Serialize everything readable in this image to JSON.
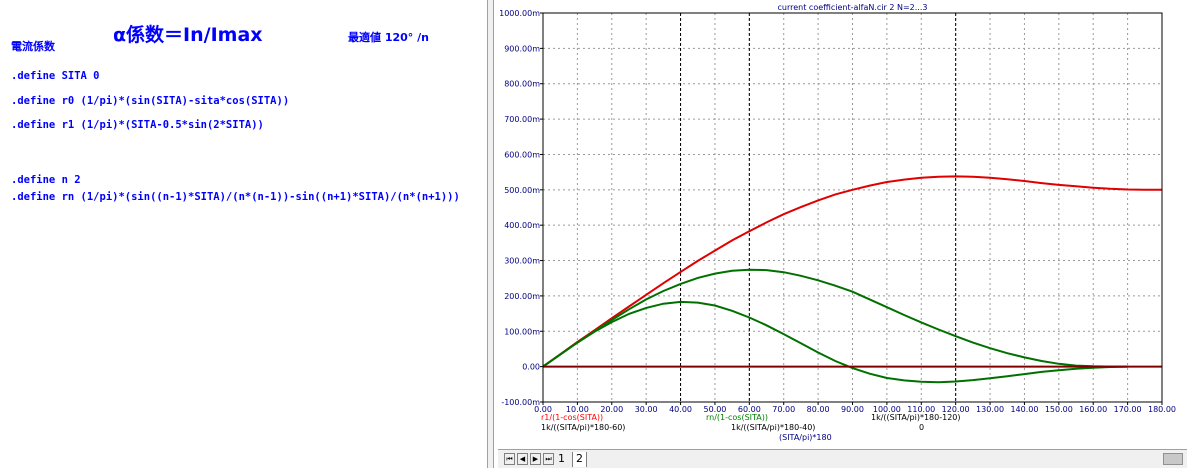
{
  "editor": {
    "header_label": "電流係数",
    "title": "α係数＝In/Imax",
    "optimum_label": "最適値 120° /n",
    "lines": [
      ".define SITA 0",
      ".define r0 (1/pi)*(sin(SITA)-sita*cos(SITA))",
      ".define r1 (1/pi)*(SITA-0.5*sin(2*SITA))",
      ".define n 2",
      ".define rn (1/pi)*(sin((n-1)*SITA)/(n*(n-1))-sin((n+1)*SITA)/(n*(n+1)))"
    ]
  },
  "tabs": {
    "nav_first": "⏮",
    "nav_prev": "◀",
    "nav_next": "▶",
    "nav_last": "⏭",
    "tab1": "1",
    "tab2": "2"
  },
  "chart_data": {
    "type": "line",
    "title": "current coefficient-alfaN.cir 2 N=2...3",
    "xlim": [
      0,
      180
    ],
    "ylim": [
      -100,
      1000
    ],
    "x_ticks": [
      "0.00",
      "10.00",
      "20.00",
      "30.00",
      "40.00",
      "50.00",
      "60.00",
      "70.00",
      "80.00",
      "90.00",
      "100.00",
      "110.00",
      "120.00",
      "130.00",
      "140.00",
      "150.00",
      "160.00",
      "170.00",
      "180.00"
    ],
    "y_ticks": [
      "-100.00m",
      "0.00",
      "100.00m",
      "200.00m",
      "300.00m",
      "400.00m",
      "500.00m",
      "600.00m",
      "700.00m",
      "800.00m",
      "900.00m",
      "1000.00m"
    ],
    "grid": true,
    "markers_x": [
      40,
      60,
      120
    ],
    "legend": [
      {
        "text": "r1/(1-cos(SITA))",
        "color": "#ff0000"
      },
      {
        "text": "rn/(1-cos(SITA))",
        "color": "#008000"
      }
    ],
    "x_expressions": [
      "1k/((SITA/pi)*180-60)",
      "1k/((SITA/pi)*180-40)",
      "1k/((SITA/pi)*180-120)",
      "(SITA/pi)*180",
      "0"
    ],
    "series": [
      {
        "name": "r1/(1-cos(SITA))",
        "color": "#e00000",
        "x": [
          0,
          5,
          10,
          15,
          20,
          25,
          30,
          35,
          40,
          45,
          50,
          55,
          60,
          65,
          70,
          75,
          80,
          85,
          90,
          95,
          100,
          105,
          110,
          115,
          120,
          125,
          130,
          135,
          140,
          145,
          150,
          155,
          160,
          165,
          170,
          175,
          180
        ],
        "y": [
          0,
          35,
          70,
          103,
          137,
          170,
          203,
          236,
          268,
          299,
          328,
          357,
          383,
          408,
          431,
          451,
          470,
          487,
          500,
          512,
          522,
          529,
          534,
          537,
          538,
          537,
          534,
          530,
          525,
          519,
          514,
          510,
          506,
          503,
          501,
          500,
          500
        ]
      },
      {
        "name": "rn/(1-cos(SITA)) n=2",
        "color": "#007000",
        "x": [
          0,
          5,
          10,
          15,
          20,
          25,
          30,
          35,
          40,
          45,
          50,
          55,
          60,
          65,
          70,
          75,
          80,
          85,
          90,
          95,
          100,
          105,
          110,
          115,
          120,
          125,
          130,
          135,
          140,
          145,
          150,
          155,
          160,
          165,
          170
        ],
        "y": [
          0,
          34,
          68,
          100,
          132,
          162,
          190,
          214,
          234,
          251,
          263,
          271,
          274,
          273,
          267,
          257,
          244,
          229,
          212,
          190,
          168,
          146,
          125,
          105,
          86,
          68,
          52,
          38,
          26,
          16,
          8,
          3,
          1,
          0,
          0
        ]
      },
      {
        "name": "rn/(1-cos(SITA)) n=3",
        "color": "#007000",
        "x": [
          0,
          5,
          10,
          15,
          20,
          25,
          30,
          35,
          40,
          45,
          50,
          55,
          60,
          65,
          70,
          75,
          80,
          85,
          90,
          95,
          100,
          105,
          110,
          115,
          120,
          125,
          130,
          135,
          140,
          145,
          150,
          155,
          160,
          165,
          170
        ],
        "y": [
          0,
          34,
          68,
          99,
          126,
          149,
          166,
          178,
          183,
          181,
          173,
          158,
          139,
          117,
          92,
          66,
          40,
          16,
          -4,
          -20,
          -32,
          -39,
          -43,
          -44,
          -42,
          -38,
          -33,
          -27,
          -21,
          -15,
          -10,
          -6,
          -3,
          -1,
          0
        ]
      },
      {
        "name": "0",
        "color": "#800000",
        "x": [
          0,
          180
        ],
        "y": [
          0,
          0
        ]
      }
    ]
  }
}
